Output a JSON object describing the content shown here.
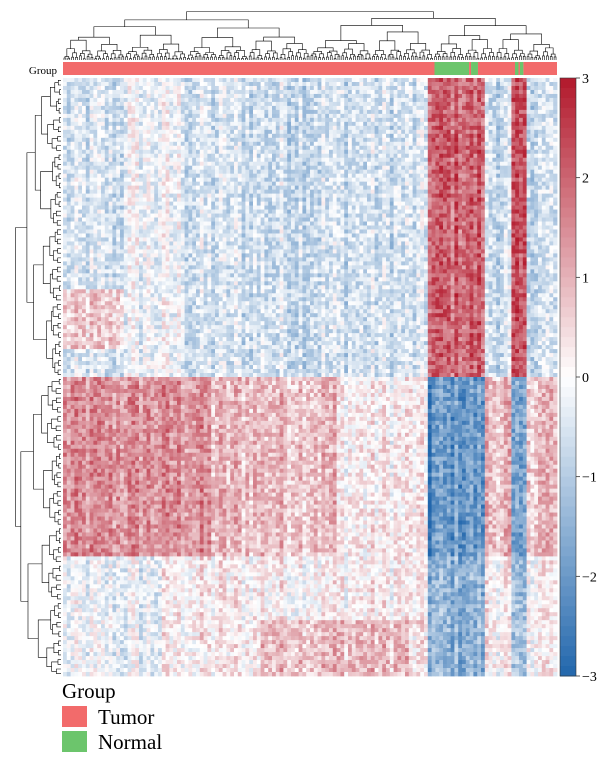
{
  "chart_data": {
    "type": "heatmap",
    "title": "",
    "xlabel": "",
    "ylabel": "",
    "annotation_track": {
      "label": "Group",
      "segments": [
        {
          "group": "Tumor",
          "from": 0,
          "to": 0.752
        },
        {
          "group": "Normal",
          "from": 0.752,
          "to": 0.822
        },
        {
          "group": "Tumor",
          "from": 0.822,
          "to": 0.826
        },
        {
          "group": "Normal",
          "from": 0.826,
          "to": 0.84
        },
        {
          "group": "Tumor",
          "from": 0.84,
          "to": 0.915
        },
        {
          "group": "Normal",
          "from": 0.915,
          "to": 0.922
        },
        {
          "group": "Tumor",
          "from": 0.922,
          "to": 0.925
        },
        {
          "group": "Normal",
          "from": 0.925,
          "to": 0.932
        },
        {
          "group": "Tumor",
          "from": 0.932,
          "to": 1.0
        }
      ]
    },
    "colorbar": {
      "min": -3,
      "max": 3,
      "ticks": [
        "3",
        "2",
        "1",
        "0",
        "−1",
        "−2",
        "−3"
      ],
      "colors": {
        "low": "#2166ac",
        "mid": "#ffffff",
        "high": "#b2182b"
      }
    },
    "legend": {
      "title": "Group",
      "placement": "bottom-left",
      "items": [
        {
          "label": "Tumor",
          "color": "#f26b6b"
        },
        {
          "label": "Normal",
          "color": "#6cc56c"
        }
      ]
    },
    "row_dendrogram": true,
    "column_dendrogram": true
  }
}
